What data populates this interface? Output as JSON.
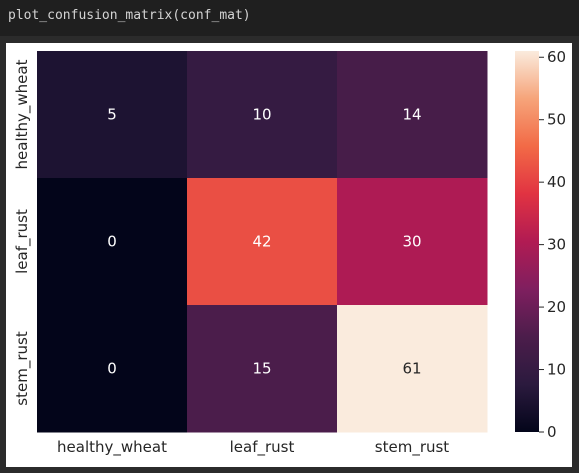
{
  "code_cell": {
    "text": "plot_confusion_matrix(conf_mat)"
  },
  "chart_data": {
    "type": "heatmap",
    "title": "",
    "xlabel": "",
    "ylabel": "",
    "x_categories": [
      "healthy_wheat",
      "leaf_rust",
      "stem_rust"
    ],
    "y_categories": [
      "healthy_wheat",
      "leaf_rust",
      "stem_rust"
    ],
    "values": [
      [
        5,
        10,
        14
      ],
      [
        0,
        42,
        30
      ],
      [
        0,
        15,
        61
      ]
    ],
    "colormap": "rocket",
    "color_range": [
      0,
      61
    ],
    "colorbar_ticks": [
      0,
      10,
      20,
      30,
      40,
      50,
      60
    ],
    "annotations": true,
    "grid": false
  }
}
